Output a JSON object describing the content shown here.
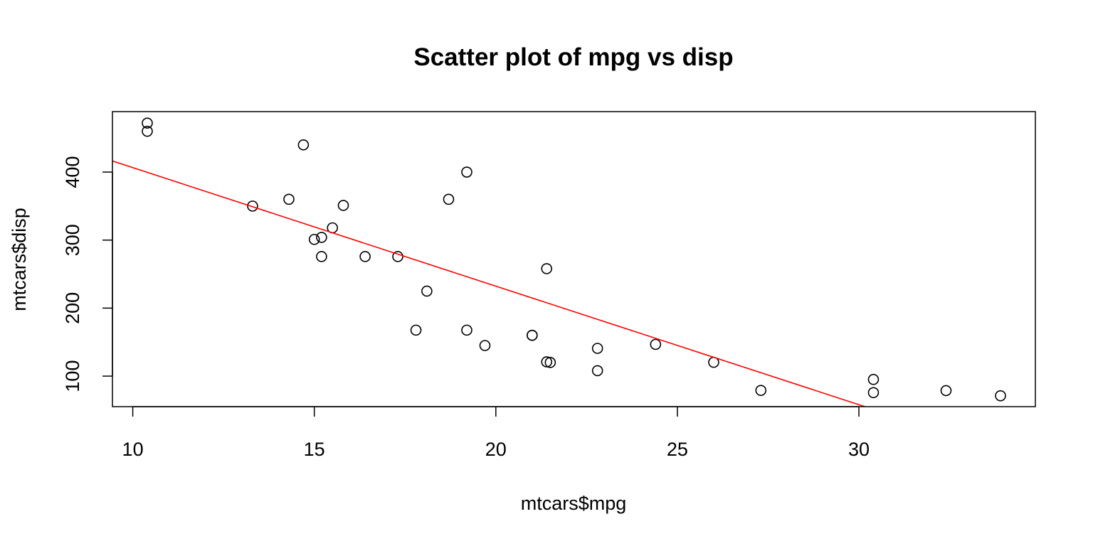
{
  "chart_data": {
    "type": "scatter",
    "title": "Scatter plot of mpg vs disp",
    "xlabel": "mtcars$mpg",
    "ylabel": "mtcars$disp",
    "xlim": [
      9.44,
      34.86
    ],
    "ylim": [
      55.1,
      488.9
    ],
    "x_ticks": [
      10,
      15,
      20,
      25,
      30
    ],
    "y_ticks": [
      100,
      200,
      300,
      400
    ],
    "grid": false,
    "legend": "none",
    "point_color": "#000000",
    "line_color": "#ff0000",
    "points": [
      [
        21.0,
        160
      ],
      [
        21.0,
        160
      ],
      [
        22.8,
        108
      ],
      [
        21.4,
        258
      ],
      [
        18.7,
        360
      ],
      [
        18.1,
        225
      ],
      [
        14.3,
        360
      ],
      [
        24.4,
        146.7
      ],
      [
        22.8,
        140.8
      ],
      [
        19.2,
        167.6
      ],
      [
        17.8,
        167.6
      ],
      [
        16.4,
        275.8
      ],
      [
        17.3,
        275.8
      ],
      [
        15.2,
        275.8
      ],
      [
        10.4,
        472
      ],
      [
        10.4,
        460
      ],
      [
        14.7,
        440
      ],
      [
        32.4,
        78.7
      ],
      [
        30.4,
        75.7
      ],
      [
        33.9,
        71.1
      ],
      [
        21.5,
        120.1
      ],
      [
        15.5,
        318
      ],
      [
        15.2,
        304
      ],
      [
        13.3,
        350
      ],
      [
        19.2,
        400
      ],
      [
        27.3,
        79
      ],
      [
        26.0,
        120.3
      ],
      [
        30.4,
        95.1
      ],
      [
        15.8,
        351
      ],
      [
        19.7,
        145
      ],
      [
        15.0,
        301
      ],
      [
        21.4,
        121
      ]
    ],
    "regression_line": {
      "intercept": 580.88,
      "slope": -17.43
    }
  }
}
